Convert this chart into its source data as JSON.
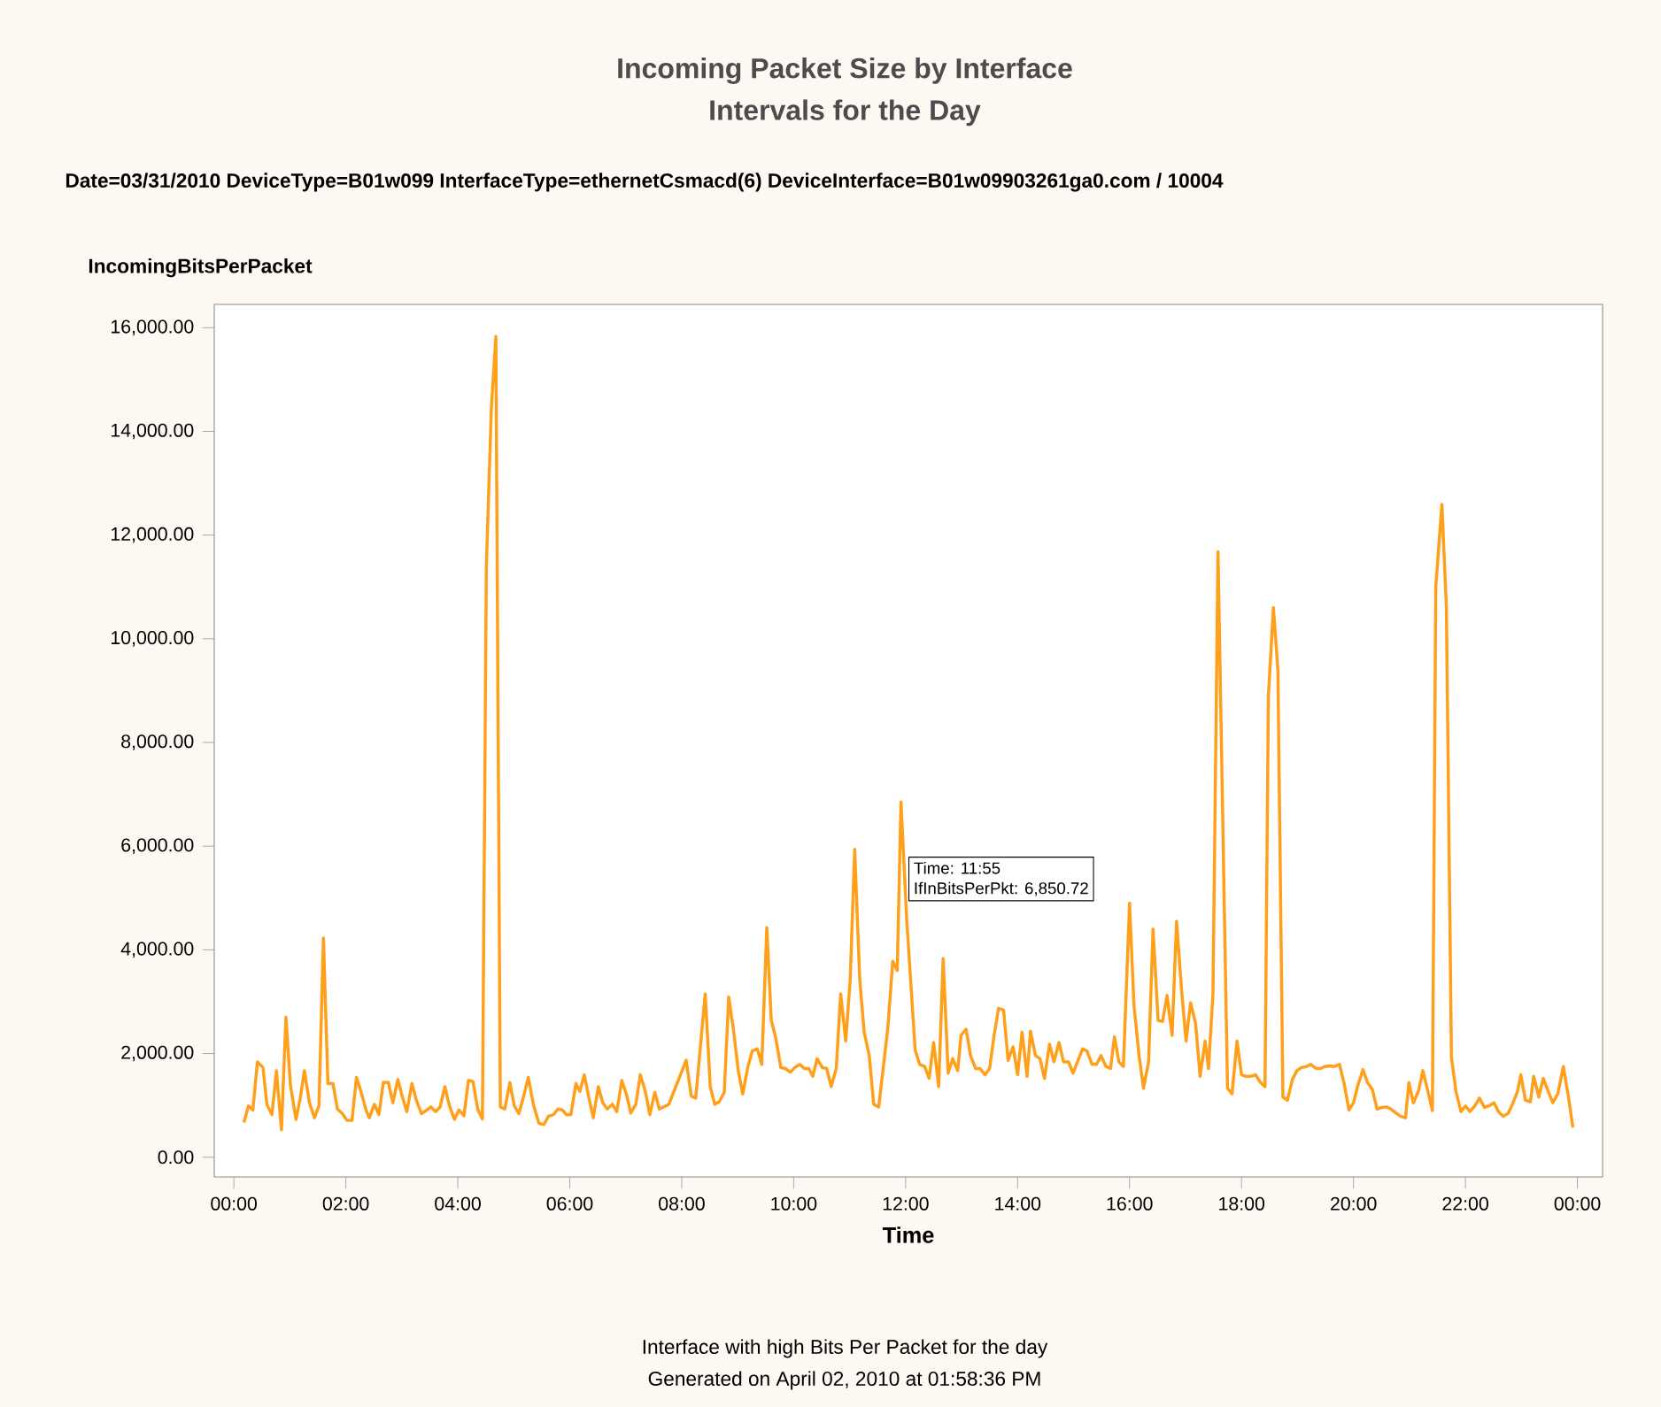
{
  "chart_data": {
    "type": "line",
    "title": "Incoming Packet Size by Interface",
    "subtitle": "Intervals for the Day",
    "xlabel": "Time",
    "ylabel": "IncomingBitsPerPacket",
    "annotations": [
      "Date=03/31/2010 DeviceType=B01w099 InterfaceType=ethernetCsmacd(6) DeviceInterface=B01w09903261ga0.com / 10004",
      "Time:          11:55",
      "IfInBitsPerPkt:  6,850.72",
      "Interface with high Bits Per Packet for the day",
      "Generated on April 02, 2010 at 01:58:36 PM"
    ],
    "color": "#ff9f1a",
    "xlim": [
      -0.35,
      24.45
    ],
    "ylim": [
      -380,
      16450
    ],
    "xticks": [
      {
        "value": 0,
        "label": "00:00"
      },
      {
        "value": 2,
        "label": "02:00"
      },
      {
        "value": 4,
        "label": "04:00"
      },
      {
        "value": 6,
        "label": "06:00"
      },
      {
        "value": 8,
        "label": "08:00"
      },
      {
        "value": 10,
        "label": "10:00"
      },
      {
        "value": 12,
        "label": "12:00"
      },
      {
        "value": 14,
        "label": "14:00"
      },
      {
        "value": 16,
        "label": "16:00"
      },
      {
        "value": 18,
        "label": "18:00"
      },
      {
        "value": 20,
        "label": "20:00"
      },
      {
        "value": 22,
        "label": "22:00"
      },
      {
        "value": 24,
        "label": "00:00"
      }
    ],
    "yticks": [
      {
        "value": 0,
        "label": "0.00"
      },
      {
        "value": 2000,
        "label": "2,000.00"
      },
      {
        "value": 4000,
        "label": "4,000.00"
      },
      {
        "value": 6000,
        "label": "6,000.00"
      },
      {
        "value": 8000,
        "label": "8,000.00"
      },
      {
        "value": 10000,
        "label": "10,000.00"
      },
      {
        "value": 12000,
        "label": "12,000.00"
      },
      {
        "value": 14000,
        "label": "14,000.00"
      },
      {
        "value": 16000,
        "label": "16,000.00"
      }
    ],
    "grid": false,
    "x": [
      0.18,
      0.26,
      0.34,
      0.42,
      0.52,
      0.59,
      0.68,
      0.76,
      0.85,
      0.93,
      1.01,
      1.11,
      1.18,
      1.26,
      1.35,
      1.44,
      1.52,
      1.6,
      1.68,
      1.77,
      1.85,
      1.94,
      2.02,
      2.11,
      2.19,
      2.27,
      2.36,
      2.42,
      2.51,
      2.59,
      2.67,
      2.76,
      2.84,
      2.93,
      3.01,
      3.09,
      3.18,
      3.26,
      3.35,
      3.45,
      3.52,
      3.6,
      3.68,
      3.77,
      3.85,
      3.94,
      4.02,
      4.11,
      4.19,
      4.27,
      4.36,
      4.44,
      4.51,
      4.6,
      4.68,
      4.76,
      4.84,
      4.93,
      5.01,
      5.09,
      5.18,
      5.26,
      5.35,
      5.45,
      5.54,
      5.62,
      5.71,
      5.79,
      5.87,
      5.94,
      6.02,
      6.11,
      6.18,
      6.26,
      6.34,
      6.42,
      6.51,
      6.59,
      6.67,
      6.76,
      6.84,
      6.93,
      7.01,
      7.09,
      7.18,
      7.26,
      7.35,
      7.43,
      7.52,
      7.6,
      7.68,
      7.77,
      8.08,
      8.17,
      8.25,
      8.42,
      8.51,
      8.59,
      8.67,
      8.76,
      8.84,
      8.93,
      9.01,
      9.09,
      9.18,
      9.26,
      9.35,
      9.43,
      9.52,
      9.6,
      9.68,
      9.77,
      9.85,
      9.94,
      10.02,
      10.11,
      10.19,
      10.27,
      10.34,
      10.42,
      10.51,
      10.59,
      10.67,
      10.76,
      10.84,
      10.93,
      11.01,
      11.09,
      11.18,
      11.26,
      11.35,
      11.43,
      11.52,
      11.6,
      11.68,
      11.77,
      11.85,
      11.917,
      12.02,
      12.17,
      12.25,
      12.34,
      12.42,
      12.5,
      12.59,
      12.67,
      12.76,
      12.84,
      12.93,
      12.99,
      13.08,
      13.16,
      13.25,
      13.33,
      13.42,
      13.5,
      13.58,
      13.66,
      13.75,
      13.83,
      13.92,
      14.0,
      14.08,
      14.17,
      14.23,
      14.32,
      14.4,
      14.48,
      14.57,
      14.65,
      14.74,
      14.82,
      14.91,
      14.99,
      15.07,
      15.16,
      15.24,
      15.33,
      15.41,
      15.49,
      15.58,
      15.66,
      15.73,
      15.81,
      15.89,
      16.0,
      16.08,
      16.17,
      16.25,
      16.34,
      16.42,
      16.51,
      16.59,
      16.67,
      16.76,
      16.84,
      16.93,
      17.01,
      17.09,
      17.18,
      17.26,
      17.35,
      17.41,
      17.49,
      17.58,
      17.75,
      17.83,
      17.92,
      18.0,
      18.08,
      18.17,
      18.25,
      18.34,
      18.42,
      18.48,
      18.57,
      18.65,
      18.74,
      18.82,
      18.91,
      18.99,
      19.07,
      19.16,
      19.24,
      19.33,
      19.41,
      19.49,
      19.58,
      19.66,
      19.75,
      19.83,
      19.92,
      20.0,
      20.08,
      20.17,
      20.25,
      20.34,
      20.42,
      20.51,
      20.59,
      20.67,
      20.76,
      20.84,
      20.93,
      20.99,
      21.07,
      21.16,
      21.24,
      21.33,
      21.41,
      21.47,
      21.58,
      21.66,
      21.75,
      21.83,
      21.92,
      22.0,
      22.08,
      22.17,
      22.25,
      22.34,
      22.42,
      22.51,
      22.59,
      22.67,
      22.76,
      22.84,
      22.93,
      22.99,
      23.07,
      23.16,
      23.22,
      23.31,
      23.39,
      23.48,
      23.56,
      23.65,
      23.75,
      23.84,
      23.92
    ],
    "values": [
      670,
      990,
      910,
      1840,
      1730,
      1020,
      820,
      1670,
      530,
      2700,
      1390,
      730,
      1100,
      1670,
      1050,
      760,
      990,
      4230,
      1420,
      1420,
      930,
      840,
      710,
      710,
      1540,
      1270,
      910,
      760,
      1020,
      820,
      1440,
      1440,
      1050,
      1500,
      1160,
      880,
      1420,
      1100,
      840,
      910,
      970,
      880,
      960,
      1360,
      990,
      730,
      910,
      800,
      1480,
      1460,
      910,
      740,
      11390,
      14460,
      15830,
      970,
      930,
      1440,
      990,
      840,
      1190,
      1540,
      1020,
      650,
      630,
      790,
      820,
      930,
      910,
      820,
      820,
      1420,
      1270,
      1590,
      1160,
      760,
      1360,
      1050,
      930,
      1020,
      880,
      1480,
      1220,
      850,
      1020,
      1590,
      1270,
      820,
      1250,
      930,
      970,
      1020,
      1870,
      1180,
      1140,
      3150,
      1360,
      1020,
      1070,
      1250,
      3090,
      2410,
      1670,
      1220,
      1730,
      2050,
      2090,
      1790,
      4430,
      2640,
      2300,
      1730,
      1710,
      1640,
      1730,
      1790,
      1710,
      1710,
      1560,
      1900,
      1730,
      1710,
      1360,
      1710,
      3150,
      2240,
      3430,
      5940,
      3430,
      2410,
      1960,
      1020,
      970,
      1730,
      2470,
      3780,
      3600,
      6850.72,
      4570,
      2070,
      1790,
      1750,
      1520,
      2210,
      1360,
      3830,
      1620,
      1900,
      1670,
      2350,
      2470,
      1960,
      1710,
      1710,
      1590,
      1710,
      2350,
      2870,
      2840,
      1870,
      2130,
      1590,
      2410,
      1560,
      2430,
      1960,
      1900,
      1520,
      2180,
      1840,
      2210,
      1840,
      1840,
      1620,
      1840,
      2090,
      2050,
      1790,
      1790,
      1960,
      1750,
      1710,
      2320,
      1840,
      1750,
      4900,
      2920,
      1960,
      1330,
      1840,
      4400,
      2640,
      2620,
      3120,
      2350,
      4550,
      3210,
      2240,
      2980,
      2580,
      1560,
      2240,
      1710,
      3150,
      11680,
      1330,
      1220,
      2240,
      1590,
      1560,
      1560,
      1590,
      1440,
      1360,
      8890,
      10600,
      9400,
      1160,
      1100,
      1500,
      1670,
      1730,
      1750,
      1790,
      1710,
      1710,
      1750,
      1760,
      1750,
      1790,
      1440,
      910,
      1050,
      1390,
      1690,
      1440,
      1300,
      930,
      960,
      970,
      930,
      850,
      790,
      760,
      1440,
      1050,
      1270,
      1670,
      1270,
      900,
      11000,
      12590,
      10600,
      1930,
      1270,
      880,
      990,
      880,
      990,
      1140,
      960,
      990,
      1050,
      880,
      790,
      840,
      1020,
      1270,
      1590,
      1100,
      1070,
      1560,
      1160,
      1520,
      1270,
      1050,
      1220,
      1750,
      1160,
      570
    ]
  }
}
